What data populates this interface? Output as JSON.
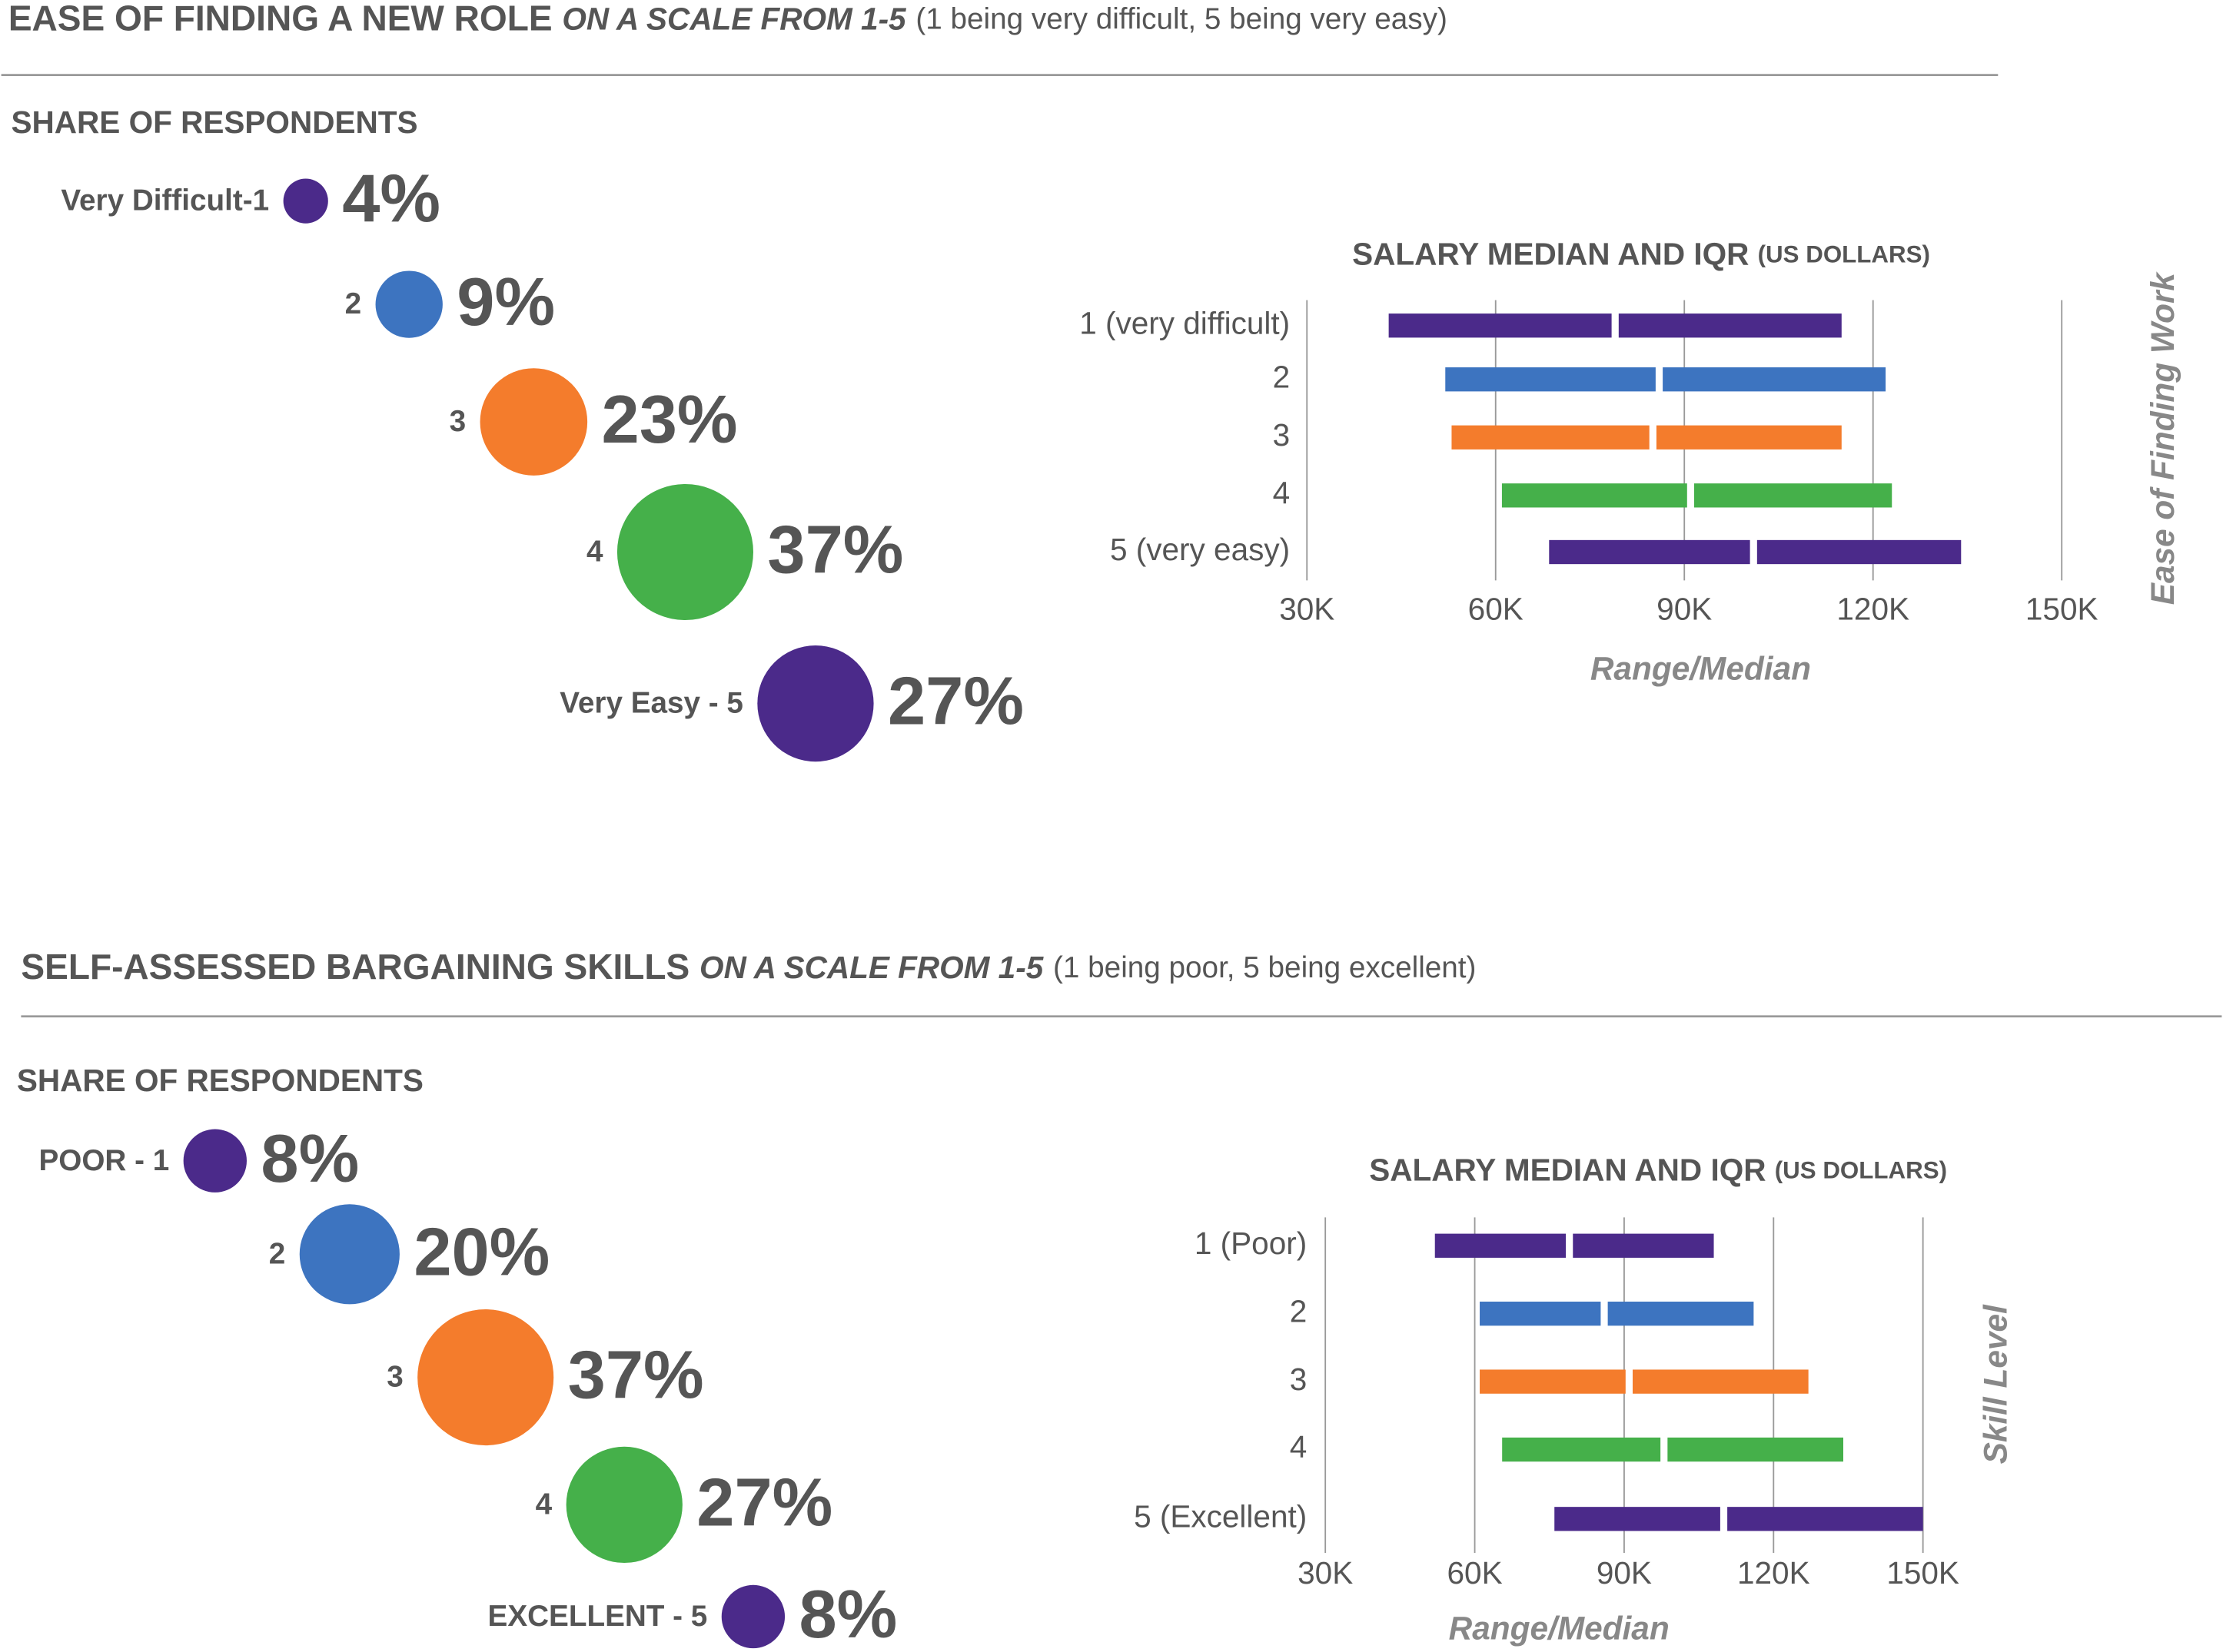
{
  "sections": [
    {
      "title": "EASE OF FINDING A NEW ROLE",
      "scale": "ON A SCALE FROM 1-5",
      "note": "(1 being very difficult, 5 being very easy)"
    },
    {
      "title": "SELF-ASSESSED BARGAINING SKILLS",
      "scale": "ON A SCALE FROM 1-5",
      "note": "(1 being poor, 5 being excellent)"
    }
  ],
  "chart_data": [
    {
      "type": "bubble",
      "title": "SHARE OF RESPONDENTS",
      "categories": [
        "Very Difficult-1",
        "2",
        "3",
        "4",
        "Very Easy - 5"
      ],
      "values": [
        4,
        9,
        23,
        37,
        27
      ],
      "value_labels": [
        "4%",
        "9%",
        "23%",
        "37%",
        "27%"
      ],
      "colors": [
        "#4b2a8a",
        "#3d74c0",
        "#f47c2c",
        "#45b04a",
        "#4b2a8a"
      ]
    },
    {
      "type": "range",
      "title": "SALARY MEDIAN AND IQR",
      "subtitle": "(US DOLLARS)",
      "categories": [
        "1 (very difficult)",
        "2",
        "3",
        "4",
        "5 (very easy)"
      ],
      "low": [
        43000,
        52000,
        53000,
        61000,
        68500
      ],
      "median": [
        79000,
        86000,
        85000,
        91000,
        101000
      ],
      "high": [
        115000,
        122000,
        115000,
        123000,
        134000
      ],
      "colors": [
        "#4b2a8a",
        "#3d74c0",
        "#f47c2c",
        "#45b04a",
        "#4b2a8a"
      ],
      "xlabel": "Range/Median",
      "ylabel": "Ease of Finding Work",
      "xlim": [
        30000,
        150000
      ],
      "xticks": [
        {
          "value": 30000,
          "label": "30K"
        },
        {
          "value": 60000,
          "label": "60K"
        },
        {
          "value": 90000,
          "label": "90K"
        },
        {
          "value": 120000,
          "label": "120K"
        },
        {
          "value": 150000,
          "label": "150K"
        }
      ],
      "grid": true
    },
    {
      "type": "bubble",
      "title": "SHARE OF RESPONDENTS",
      "categories": [
        "POOR - 1",
        "2",
        "3",
        "4",
        "EXCELLENT - 5"
      ],
      "values": [
        8,
        20,
        37,
        27,
        8
      ],
      "value_labels": [
        "8%",
        "20%",
        "37%",
        "27%",
        "8%"
      ],
      "colors": [
        "#4b2a8a",
        "#3d74c0",
        "#f47c2c",
        "#45b04a",
        "#4b2a8a"
      ]
    },
    {
      "type": "range",
      "title": "SALARY MEDIAN AND IQR",
      "subtitle": "(US DOLLARS)",
      "categories": [
        "1 (Poor)",
        "2",
        "3",
        "4",
        "5 (Excellent)"
      ],
      "low": [
        52000,
        61000,
        61000,
        65500,
        76000
      ],
      "median": [
        79000,
        86000,
        91000,
        98000,
        110000
      ],
      "high": [
        108000,
        116000,
        127000,
        134000,
        150000
      ],
      "colors": [
        "#4b2a8a",
        "#3d74c0",
        "#f47c2c",
        "#45b04a",
        "#4b2a8a"
      ],
      "xlabel": "Range/Median",
      "ylabel": "Skill Level",
      "xlim": [
        30000,
        150000
      ],
      "xticks": [
        {
          "value": 30000,
          "label": "30K"
        },
        {
          "value": 60000,
          "label": "60K"
        },
        {
          "value": 90000,
          "label": "90K"
        },
        {
          "value": 120000,
          "label": "120K"
        },
        {
          "value": 150000,
          "label": "150K"
        }
      ],
      "grid": true
    }
  ]
}
